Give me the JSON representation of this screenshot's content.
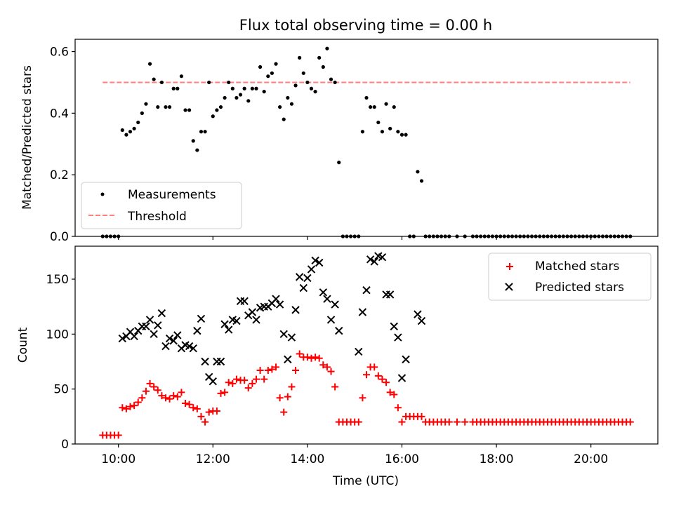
{
  "chart_data": [
    {
      "type": "scatter",
      "title": "Flux total observing time = 0.00 h",
      "xlabel": "",
      "ylabel": "Matched/Predicted stars",
      "ylim": [
        0,
        0.64
      ],
      "yticks": [
        "0.0",
        "0.2",
        "0.4",
        "0.6"
      ],
      "legend": "lower-left",
      "grid": false,
      "series": [
        {
          "name": "Measurements",
          "marker": "dot",
          "color": "#000000",
          "x": [
            "09:40",
            "09:45",
            "09:50",
            "09:55",
            "10:00",
            "10:05",
            "10:10",
            "10:15",
            "10:20",
            "10:25",
            "10:30",
            "10:35",
            "10:40",
            "10:45",
            "10:50",
            "10:55",
            "11:00",
            "11:05",
            "11:10",
            "11:15",
            "11:20",
            "11:25",
            "11:30",
            "11:35",
            "11:40",
            "11:45",
            "11:50",
            "11:55",
            "12:00",
            "12:05",
            "12:10",
            "12:15",
            "12:20",
            "12:25",
            "12:30",
            "12:35",
            "12:40",
            "12:45",
            "12:50",
            "12:55",
            "13:00",
            "13:05",
            "13:10",
            "13:15",
            "13:20",
            "13:25",
            "13:30",
            "13:35",
            "13:40",
            "13:45",
            "13:50",
            "13:55",
            "14:00",
            "14:05",
            "14:10",
            "14:15",
            "14:20",
            "14:25",
            "14:30",
            "14:35",
            "14:40",
            "14:45",
            "14:50",
            "14:55",
            "15:00",
            "15:05",
            "15:10",
            "15:15",
            "15:20",
            "15:25",
            "15:30",
            "15:35",
            "15:40",
            "15:45",
            "15:50",
            "15:55",
            "16:00",
            "16:05",
            "16:10",
            "16:15",
            "16:20",
            "16:25",
            "16:30",
            "16:35",
            "16:40",
            "16:45",
            "16:50",
            "16:55",
            "17:00",
            "17:10",
            "17:20",
            "17:30",
            "17:35",
            "17:40",
            "17:45",
            "17:50",
            "17:55",
            "18:00",
            "18:05",
            "18:10",
            "18:15",
            "18:20",
            "18:25",
            "18:30",
            "18:35",
            "18:40",
            "18:45",
            "18:50",
            "18:55",
            "19:00",
            "19:05",
            "19:10",
            "19:15",
            "19:20",
            "19:25",
            "19:30",
            "19:35",
            "19:40",
            "19:45",
            "19:50",
            "19:55",
            "20:00",
            "20:05",
            "20:10",
            "20:15",
            "20:20",
            "20:25",
            "20:30",
            "20:35",
            "20:40",
            "20:45",
            "20:50"
          ],
          "y": [
            0.0,
            0.0,
            0.0,
            0.0,
            0.0,
            0.345,
            0.33,
            0.34,
            0.35,
            0.37,
            0.4,
            0.43,
            0.56,
            0.51,
            0.42,
            0.5,
            0.42,
            0.42,
            0.48,
            0.48,
            0.52,
            0.41,
            0.41,
            0.31,
            0.28,
            0.34,
            0.34,
            0.5,
            0.39,
            0.41,
            0.42,
            0.45,
            0.5,
            0.48,
            0.45,
            0.46,
            0.48,
            0.44,
            0.48,
            0.48,
            0.55,
            0.47,
            0.52,
            0.53,
            0.56,
            0.42,
            0.38,
            0.45,
            0.43,
            0.49,
            0.58,
            0.53,
            0.5,
            0.48,
            0.47,
            0.58,
            0.55,
            0.61,
            0.51,
            0.5,
            0.24,
            0.0,
            0.0,
            0.0,
            0.0,
            0.0,
            0.34,
            0.45,
            0.42,
            0.42,
            0.37,
            0.34,
            0.43,
            0.35,
            0.42,
            0.34,
            0.33,
            0.33,
            0.0,
            0.0,
            0.21,
            0.18,
            0.0,
            0.0,
            0.0,
            0.0,
            0.0,
            0.0,
            0.0,
            0.0,
            0.0,
            0.0,
            0.0,
            0.0,
            0.0,
            0.0,
            0.0,
            0.0,
            0.0,
            0.0,
            0.0,
            0.0,
            0.0,
            0.0,
            0.0,
            0.0,
            0.0,
            0.0,
            0.0,
            0.0,
            0.0,
            0.0,
            0.0,
            0.0,
            0.0,
            0.0,
            0.0,
            0.0,
            0.0,
            0.0,
            0.0,
            0.0,
            0.0,
            0.0,
            0.0,
            0.0,
            0.0,
            0.0,
            0.0,
            0.0,
            0.0,
            0.0
          ]
        },
        {
          "name": "Threshold",
          "marker": "dashed-line",
          "color": "#ff7f7f",
          "x": [
            "09:40",
            "20:50"
          ],
          "y": [
            0.5,
            0.5
          ]
        }
      ]
    },
    {
      "type": "scatter",
      "title": "",
      "xlabel": "Time (UTC)",
      "ylabel": "Count",
      "ylim": [
        0,
        180
      ],
      "xlim": [
        "09:05",
        "21:25"
      ],
      "xticks": [
        "10:00",
        "12:00",
        "14:00",
        "16:00",
        "18:00",
        "20:00"
      ],
      "yticks": [
        "0",
        "50",
        "100",
        "150"
      ],
      "legend": "top-right",
      "grid": false,
      "series": [
        {
          "name": "Matched stars",
          "marker": "plus",
          "color": "#ff0000",
          "x": [
            "09:40",
            "09:45",
            "09:50",
            "09:55",
            "10:00",
            "10:05",
            "10:10",
            "10:15",
            "10:20",
            "10:25",
            "10:30",
            "10:35",
            "10:40",
            "10:45",
            "10:50",
            "10:55",
            "11:00",
            "11:05",
            "11:10",
            "11:15",
            "11:20",
            "11:25",
            "11:30",
            "11:35",
            "11:40",
            "11:45",
            "11:50",
            "11:55",
            "12:00",
            "12:05",
            "12:10",
            "12:15",
            "12:20",
            "12:25",
            "12:30",
            "12:35",
            "12:40",
            "12:45",
            "12:50",
            "12:55",
            "13:00",
            "13:05",
            "13:10",
            "13:15",
            "13:20",
            "13:25",
            "13:30",
            "13:35",
            "13:40",
            "13:45",
            "13:50",
            "13:55",
            "14:00",
            "14:05",
            "14:10",
            "14:15",
            "14:20",
            "14:25",
            "14:30",
            "14:35",
            "14:40",
            "14:45",
            "14:50",
            "14:55",
            "15:00",
            "15:05",
            "15:10",
            "15:15",
            "15:20",
            "15:25",
            "15:30",
            "15:35",
            "15:40",
            "15:45",
            "15:50",
            "15:55",
            "16:00",
            "16:05",
            "16:10",
            "16:15",
            "16:20",
            "16:25",
            "16:30",
            "16:35",
            "16:40",
            "16:45",
            "16:50",
            "16:55",
            "17:00",
            "17:10",
            "17:20",
            "17:30",
            "17:35",
            "17:40",
            "17:45",
            "17:50",
            "17:55",
            "18:00",
            "18:05",
            "18:10",
            "18:15",
            "18:20",
            "18:25",
            "18:30",
            "18:35",
            "18:40",
            "18:45",
            "18:50",
            "18:55",
            "19:00",
            "19:05",
            "19:10",
            "19:15",
            "19:20",
            "19:25",
            "19:30",
            "19:35",
            "19:40",
            "19:45",
            "19:50",
            "19:55",
            "20:00",
            "20:05",
            "20:10",
            "20:15",
            "20:20",
            "20:25",
            "20:30",
            "20:35",
            "20:40",
            "20:45",
            "20:50"
          ],
          "y": [
            8,
            8,
            8,
            8,
            8,
            33,
            32,
            34,
            35,
            38,
            42,
            48,
            55,
            52,
            49,
            44,
            42,
            41,
            44,
            43,
            47,
            37,
            36,
            33,
            32,
            25,
            20,
            29,
            30,
            30,
            46,
            47,
            56,
            55,
            59,
            58,
            58,
            51,
            55,
            59,
            67,
            59,
            67,
            68,
            70,
            42,
            29,
            43,
            52,
            67,
            82,
            79,
            79,
            78,
            79,
            78,
            72,
            70,
            66,
            52,
            20,
            20,
            20,
            20,
            20,
            20,
            42,
            63,
            70,
            70,
            62,
            59,
            56,
            47,
            45,
            33,
            20,
            25,
            25,
            25,
            25,
            25,
            20,
            20,
            20,
            20,
            20,
            20,
            20,
            20,
            20,
            20,
            20,
            20,
            20,
            20,
            20,
            20,
            20,
            20,
            20,
            20,
            20,
            20,
            20,
            20,
            20,
            20,
            20,
            20,
            20,
            20,
            20,
            20,
            20,
            20,
            20,
            20,
            20,
            20,
            20,
            20,
            20,
            20,
            20,
            20,
            20,
            20,
            20,
            20,
            20,
            20
          ]
        },
        {
          "name": "Predicted stars",
          "marker": "x",
          "color": "#000000",
          "x": [
            "10:05",
            "10:10",
            "10:15",
            "10:20",
            "10:25",
            "10:30",
            "10:35",
            "10:40",
            "10:45",
            "10:50",
            "10:55",
            "11:00",
            "11:05",
            "11:10",
            "11:15",
            "11:20",
            "11:25",
            "11:30",
            "11:35",
            "11:40",
            "11:45",
            "11:50",
            "11:55",
            "12:00",
            "12:05",
            "12:10",
            "12:15",
            "12:20",
            "12:25",
            "12:30",
            "12:35",
            "12:40",
            "12:45",
            "12:50",
            "12:55",
            "13:00",
            "13:05",
            "13:10",
            "13:15",
            "13:20",
            "13:25",
            "13:30",
            "13:35",
            "13:40",
            "13:45",
            "13:50",
            "13:55",
            "14:00",
            "14:05",
            "14:10",
            "14:15",
            "14:20",
            "14:25",
            "14:30",
            "14:35",
            "14:40",
            "15:05",
            "15:10",
            "15:15",
            "15:20",
            "15:25",
            "15:30",
            "15:35",
            "15:40",
            "15:45",
            "15:50",
            "15:55",
            "16:00",
            "16:05",
            "16:20",
            "16:25"
          ],
          "y": [
            96,
            98,
            102,
            98,
            103,
            107,
            107,
            113,
            100,
            108,
            119,
            89,
            96,
            94,
            99,
            87,
            90,
            89,
            87,
            103,
            114,
            75,
            61,
            57,
            75,
            75,
            109,
            104,
            113,
            112,
            130,
            130,
            117,
            120,
            113,
            124,
            125,
            125,
            128,
            132,
            127,
            100,
            77,
            97,
            122,
            152,
            142,
            151,
            159,
            167,
            165,
            138,
            132,
            113,
            127,
            103,
            84,
            120,
            140,
            168,
            166,
            171,
            170,
            136,
            136,
            107,
            97,
            60,
            77,
            118,
            112
          ]
        }
      ]
    }
  ]
}
